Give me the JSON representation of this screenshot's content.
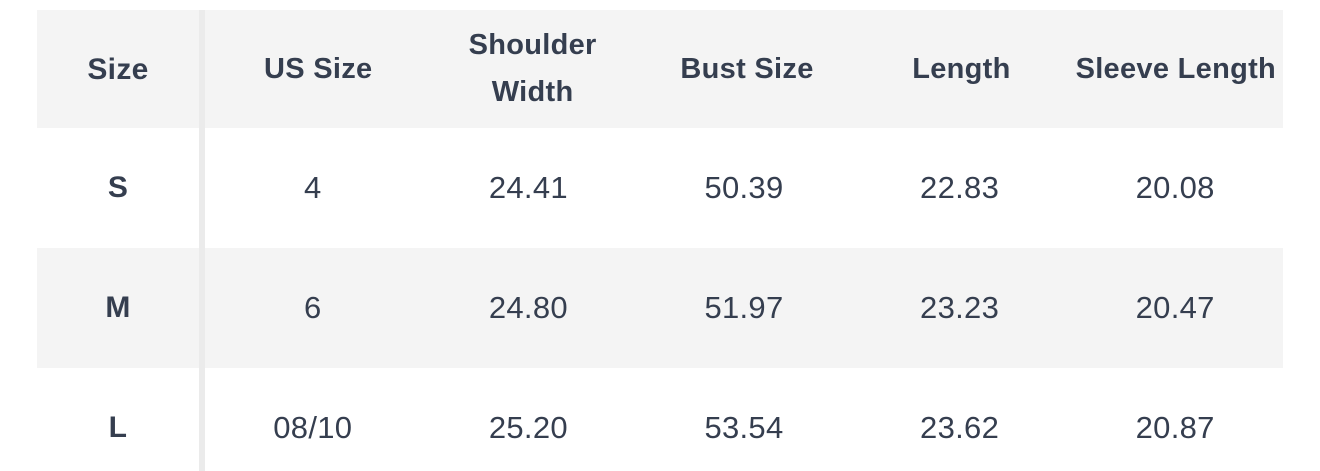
{
  "chart_data": {
    "type": "table",
    "columns": [
      "Size",
      "US Size",
      "Shoulder Width",
      "Bust Size",
      "Length",
      "Sleeve Length"
    ],
    "rows": [
      {
        "cells": [
          "S",
          "4",
          "24.41",
          "50.39",
          "22.83",
          "20.08"
        ]
      },
      {
        "cells": [
          "M",
          "6",
          "24.80",
          "51.97",
          "23.23",
          "20.47"
        ]
      },
      {
        "cells": [
          "L",
          "08/10",
          "25.20",
          "53.54",
          "23.62",
          "20.87"
        ]
      }
    ],
    "layout": {
      "striped_rows": [
        "header",
        "M"
      ],
      "first_column_divider": true
    }
  },
  "colors": {
    "stripe_background": "#f4f4f4",
    "divider": "#ebebeb",
    "text": "#353e4f",
    "page_background": "#ffffff"
  }
}
